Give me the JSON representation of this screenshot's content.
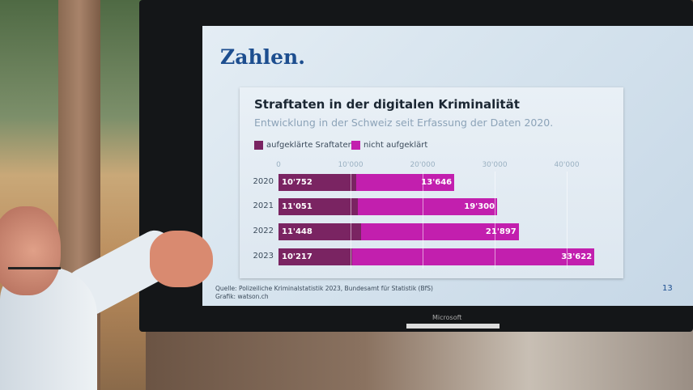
{
  "slide": {
    "headline": "Zahlen.",
    "page_number": "13",
    "source_line": "Quelle: Polizeiliche Kriminalstatistik 2023, Bundesamt für Statistik (BfS)",
    "graphic_line": "Grafik: watson.ch"
  },
  "monitor": {
    "brand": "Microsoft"
  },
  "chart_data": {
    "type": "bar",
    "orientation": "horizontal",
    "stacked": true,
    "title": "Straftaten in der digitalen Kriminalität",
    "subtitle": "Entwicklung in der Schweiz seit Erfassung der Daten 2020.",
    "categories": [
      "2020",
      "2021",
      "2022",
      "2023"
    ],
    "series": [
      {
        "name": "aufgeklärte Sraftaten",
        "color": "#7a2462",
        "values": [
          10752,
          11051,
          11448,
          10217
        ],
        "labels": [
          "10'752",
          "11'051",
          "11'448",
          "10'217"
        ]
      },
      {
        "name": "nicht aufgeklärt",
        "color": "#c21fae",
        "values": [
          13646,
          19300,
          21897,
          33622
        ],
        "labels": [
          "13'646",
          "19'300",
          "21'897",
          "33'622"
        ]
      }
    ],
    "xlim": [
      0,
      44000
    ],
    "ticks": [
      0,
      10000,
      20000,
      30000,
      40000
    ],
    "tick_labels": [
      "0",
      "10'000",
      "20'000",
      "30'000",
      "40'000"
    ],
    "grid": true,
    "legend": "top-left"
  }
}
